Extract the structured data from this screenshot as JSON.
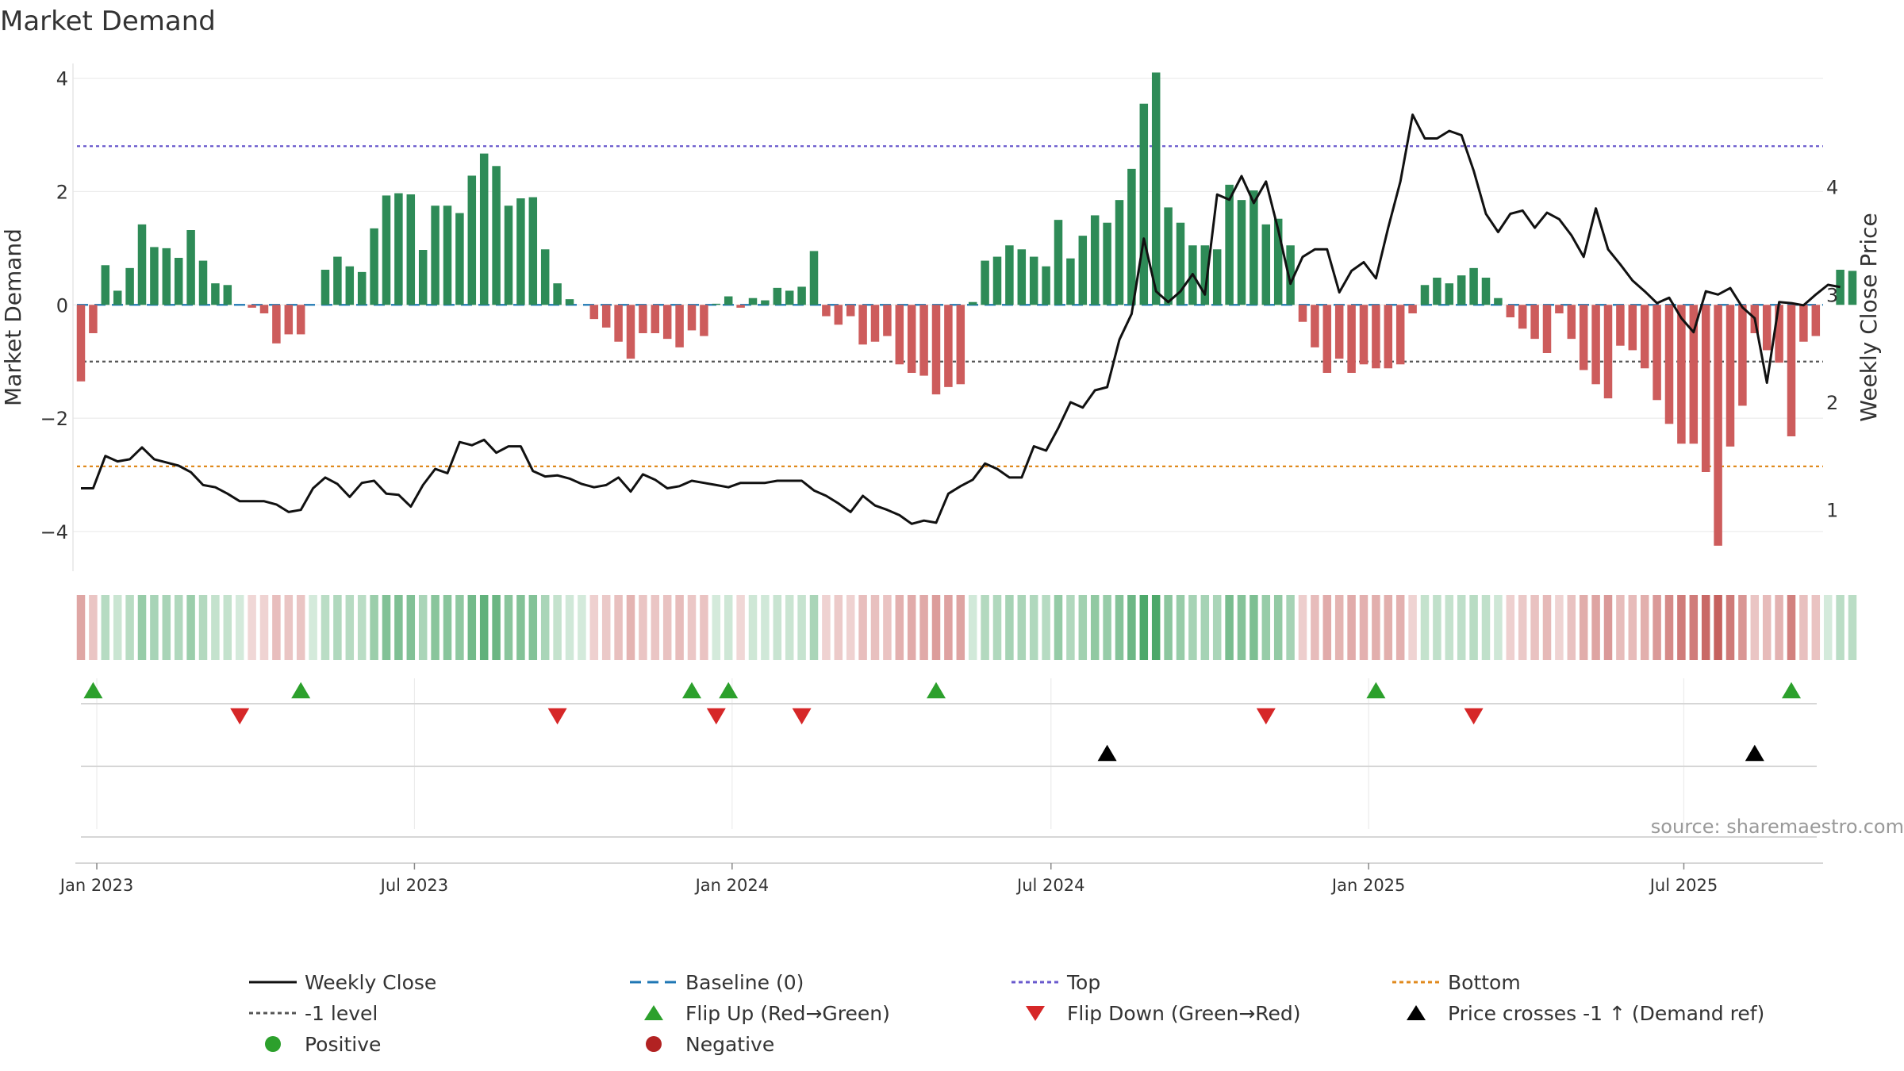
{
  "chart_data": {
    "type": "bar",
    "title": "Market Demand",
    "ylabel_left": "Market Demand",
    "ylabel_right": "Weekly Close Price",
    "source": "source: sharemaestro.com",
    "ylim_left": [
      -4.7,
      4.4
    ],
    "ylim_right": [
      0.43,
      5.22
    ],
    "yticks_left": [
      4,
      2,
      0,
      -2,
      -4
    ],
    "yticks_left_labels": [
      "4",
      "2",
      "0",
      "−2",
      "−4"
    ],
    "yticks_right": [
      4,
      3,
      2,
      1
    ],
    "xtick_labels": [
      "Jan 2023",
      "Jul 2023",
      "Jan 2024",
      "Jul 2024",
      "Jan 2025",
      "Jul 2025"
    ],
    "xtick_weeks": [
      1.3,
      27.3,
      53.3,
      79.4,
      105.4,
      131.2
    ],
    "grid": true,
    "reference_lines": {
      "top": 2.8,
      "bottom": -2.85,
      "minus_one": -1.0,
      "baseline": 0
    },
    "n_weeks": 145,
    "demand": [
      -1.35,
      -0.5,
      0.7,
      0.25,
      0.65,
      1.42,
      1.02,
      1.0,
      0.83,
      1.32,
      0.78,
      0.38,
      0.35,
      0.0,
      -0.05,
      -0.15,
      -0.68,
      -0.52,
      -0.52,
      0.0,
      0.62,
      0.85,
      0.68,
      0.58,
      1.35,
      1.93,
      1.97,
      1.95,
      0.97,
      1.75,
      1.75,
      1.62,
      2.28,
      2.67,
      2.45,
      1.75,
      1.88,
      1.9,
      0.98,
      0.38,
      0.1,
      0.0,
      -0.25,
      -0.4,
      -0.65,
      -0.95,
      -0.5,
      -0.5,
      -0.6,
      -0.75,
      -0.45,
      -0.55,
      0.02,
      0.15,
      -0.05,
      0.12,
      0.08,
      0.3,
      0.25,
      0.32,
      0.95,
      -0.2,
      -0.35,
      -0.2,
      -0.7,
      -0.65,
      -0.55,
      -1.05,
      -1.2,
      -1.25,
      -1.58,
      -1.45,
      -1.4,
      0.05,
      0.78,
      0.85,
      1.05,
      0.98,
      0.85,
      0.68,
      1.5,
      0.82,
      1.22,
      1.58,
      1.45,
      1.85,
      2.4,
      3.55,
      4.1,
      1.72,
      1.45,
      1.05,
      1.05,
      0.98,
      2.12,
      1.85,
      2.02,
      1.42,
      1.52,
      1.05,
      -0.3,
      -0.75,
      -1.2,
      -0.95,
      -1.2,
      -1.05,
      -1.12,
      -1.12,
      -1.05,
      -0.15,
      0.35,
      0.48,
      0.38,
      0.52,
      0.65,
      0.48,
      0.12,
      -0.22,
      -0.42,
      -0.6,
      -0.85,
      -0.15,
      -0.6,
      -1.15,
      -1.4,
      -1.65,
      -0.72,
      -0.8,
      -1.12,
      -1.68,
      -2.1,
      -2.45,
      -2.45,
      -2.95,
      -4.25,
      -2.5,
      -1.78,
      -0.5,
      -0.8,
      -1.02,
      -2.32,
      -0.65,
      -0.55,
      0.0,
      0.62,
      0.6
    ],
    "weekly_close": [
      1.2,
      1.2,
      1.5,
      1.45,
      1.47,
      1.58,
      1.47,
      1.44,
      1.41,
      1.35,
      1.23,
      1.21,
      1.15,
      1.08,
      1.08,
      1.08,
      1.05,
      0.98,
      1.0,
      1.2,
      1.3,
      1.24,
      1.12,
      1.25,
      1.27,
      1.15,
      1.14,
      1.03,
      1.23,
      1.38,
      1.34,
      1.63,
      1.6,
      1.65,
      1.53,
      1.59,
      1.59,
      1.36,
      1.31,
      1.32,
      1.29,
      1.24,
      1.21,
      1.23,
      1.3,
      1.17,
      1.33,
      1.28,
      1.2,
      1.22,
      1.27,
      1.25,
      1.23,
      1.21,
      1.25,
      1.25,
      1.25,
      1.27,
      1.27,
      1.27,
      1.18,
      1.13,
      1.06,
      0.98,
      1.13,
      1.04,
      1.0,
      0.95,
      0.87,
      0.9,
      0.88,
      1.15,
      1.22,
      1.28,
      1.43,
      1.38,
      1.3,
      1.3,
      1.59,
      1.55,
      1.76,
      2.0,
      1.95,
      2.11,
      2.14,
      2.58,
      2.82,
      3.52,
      3.03,
      2.93,
      3.03,
      3.19,
      3.0,
      3.93,
      3.88,
      4.1,
      3.85,
      4.05,
      3.6,
      3.1,
      3.35,
      3.42,
      3.42,
      3.02,
      3.22,
      3.3,
      3.15,
      3.62,
      4.05,
      4.67,
      4.45,
      4.45,
      4.52,
      4.48,
      4.15,
      3.75,
      3.58,
      3.75,
      3.78,
      3.62,
      3.76,
      3.7,
      3.55,
      3.35,
      3.8,
      3.42,
      3.28,
      3.13,
      3.03,
      2.92,
      2.97,
      2.78,
      2.65,
      3.03,
      3.0,
      3.06,
      2.88,
      2.78,
      2.18,
      2.93,
      2.92,
      2.9,
      3.0,
      3.09,
      3.07
    ],
    "flip_up_weeks": [
      1,
      18,
      50,
      53,
      70,
      106,
      140
    ],
    "flip_down_weeks": [
      13,
      39,
      52,
      59,
      97,
      114
    ],
    "price_cross_weeks": [
      84,
      137
    ],
    "legend": [
      {
        "label": "Weekly Close",
        "kind": "line-solid",
        "color": "#111111"
      },
      {
        "label": "Baseline (0)",
        "kind": "line-dash",
        "color": "#1f77b4"
      },
      {
        "label": "Top",
        "kind": "line-dot",
        "color": "#6a5acd"
      },
      {
        "label": "Bottom",
        "kind": "line-dot",
        "color": "#e08a1e"
      },
      {
        "label": "-1 level",
        "kind": "line-dot",
        "color": "#555555"
      },
      {
        "label": "Flip Up (Red→Green)",
        "kind": "tri-up",
        "color": "#2ca02c"
      },
      {
        "label": "Flip Down (Green→Red)",
        "kind": "tri-down",
        "color": "#d62728"
      },
      {
        "label": "Price crosses -1 ↑ (Demand ref)",
        "kind": "tri-up",
        "color": "#000000"
      },
      {
        "label": "Positive",
        "kind": "dot",
        "color": "#2ca02c"
      },
      {
        "label": "Negative",
        "kind": "dot",
        "color": "#b22222"
      }
    ],
    "colors": {
      "positive_bar": "#2e8b57",
      "negative_bar": "#cd5c5c",
      "price_line": "#111111",
      "top_line": "#6a5acd",
      "bottom_line": "#e08a1e",
      "minus_one_line": "#555555",
      "baseline": "#1f77b4",
      "heat_positive": "#3a9e5a",
      "heat_negative": "#c0504d"
    }
  }
}
